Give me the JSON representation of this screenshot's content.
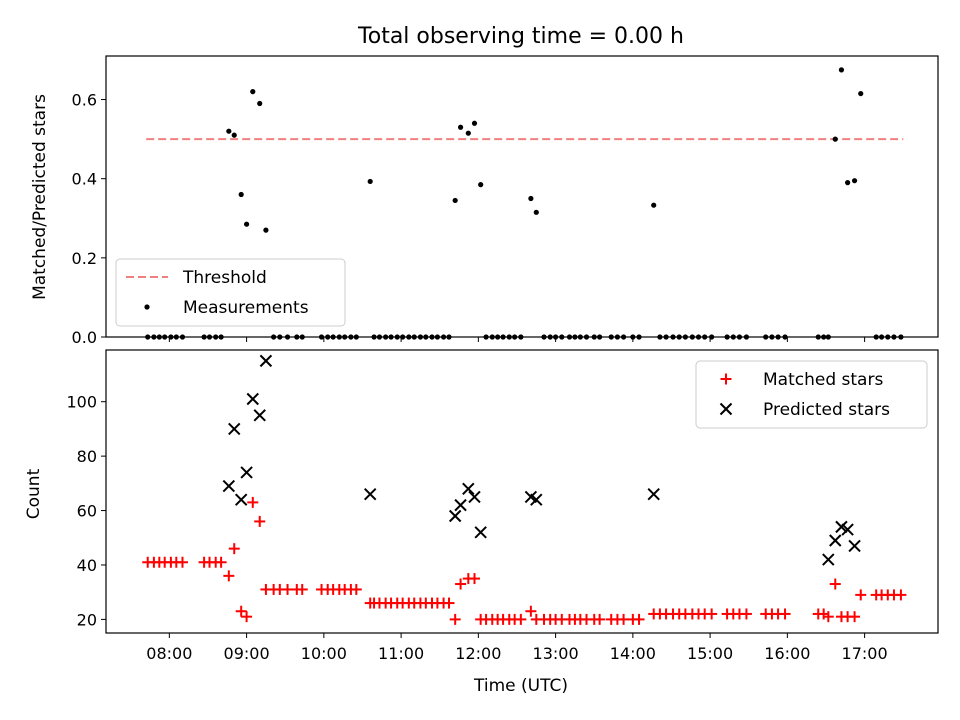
{
  "figure": {
    "title": "Total observing time = 0.00 h"
  },
  "chart_data": [
    {
      "type": "scatter",
      "panel": "top",
      "title": "Total observing time = 0.00 h",
      "ylabel": "Matched/Predicted stars",
      "xlabel": "",
      "xlim_hours": [
        7.18,
        17.95
      ],
      "ylim": [
        0,
        0.71
      ],
      "yticks": [
        0.0,
        0.2,
        0.4,
        0.6
      ],
      "ytick_labels": [
        "0.0",
        "0.2",
        "0.4",
        "0.6"
      ],
      "grid": false,
      "legend_position": "lower-left",
      "threshold": {
        "name": "Threshold",
        "value": 0.5,
        "x_range": [
          7.7,
          17.5
        ],
        "color": "#f08080",
        "style": "dashed"
      },
      "series": [
        {
          "name": "Measurements",
          "color": "#000000",
          "marker": "dot",
          "x": [
            7.72,
            7.8,
            7.87,
            7.94,
            8.02,
            8.09,
            8.17,
            8.45,
            8.52,
            8.6,
            8.67,
            8.77,
            8.84,
            8.93,
            9.0,
            9.08,
            9.17,
            9.25,
            9.35,
            9.43,
            9.53,
            9.65,
            9.72,
            9.97,
            10.05,
            10.12,
            10.2,
            10.27,
            10.35,
            10.42,
            10.6,
            10.65,
            10.72,
            10.8,
            10.87,
            10.95,
            11.02,
            11.1,
            11.17,
            11.25,
            11.32,
            11.4,
            11.47,
            11.55,
            11.62,
            11.7,
            11.77,
            11.87,
            11.95,
            12.03,
            12.1,
            12.18,
            12.25,
            12.32,
            12.4,
            12.47,
            12.55,
            12.68,
            12.75,
            12.85,
            12.93,
            13.0,
            13.08,
            13.18,
            13.25,
            13.32,
            13.4,
            13.5,
            13.57,
            13.72,
            13.8,
            13.88,
            14.0,
            14.08,
            14.27,
            14.35,
            14.43,
            14.52,
            14.6,
            14.68,
            14.77,
            14.85,
            14.93,
            15.02,
            15.22,
            15.3,
            15.38,
            15.47,
            15.72,
            15.8,
            15.88,
            15.97,
            16.4,
            16.47,
            16.53,
            16.62,
            16.7,
            16.78,
            16.87,
            16.95,
            17.15,
            17.22,
            17.3,
            17.38,
            17.47
          ],
          "y": [
            0,
            0,
            0,
            0,
            0,
            0,
            0,
            0,
            0,
            0,
            0,
            0.52,
            0.51,
            0.36,
            0.285,
            0.62,
            0.59,
            0.27,
            0,
            0,
            0,
            0,
            0,
            0,
            0,
            0,
            0,
            0,
            0,
            0,
            0.393,
            0,
            0,
            0,
            0,
            0,
            0,
            0,
            0,
            0,
            0,
            0,
            0,
            0,
            0,
            0.345,
            0.53,
            0.515,
            0.54,
            0.385,
            0,
            0,
            0,
            0,
            0,
            0,
            0,
            0.35,
            0.315,
            0,
            0,
            0,
            0,
            0,
            0,
            0,
            0,
            0,
            0,
            0,
            0,
            0,
            0,
            0,
            0.333,
            0,
            0,
            0,
            0,
            0,
            0,
            0,
            0,
            0,
            0,
            0,
            0,
            0,
            0,
            0,
            0,
            0,
            0,
            0,
            0,
            0.5,
            0.675,
            0.39,
            0.395,
            0.615,
            0,
            0,
            0,
            0,
            0
          ]
        }
      ]
    },
    {
      "type": "scatter",
      "panel": "bottom",
      "xlabel": "Time (UTC)",
      "ylabel": "Count",
      "xlim_hours": [
        7.18,
        17.95
      ],
      "ylim": [
        15,
        119
      ],
      "xticks_hours": [
        8,
        9,
        10,
        11,
        12,
        13,
        14,
        15,
        16,
        17
      ],
      "xtick_labels": [
        "08:00",
        "09:00",
        "10:00",
        "11:00",
        "12:00",
        "13:00",
        "14:00",
        "15:00",
        "16:00",
        "17:00"
      ],
      "yticks": [
        20,
        40,
        60,
        80,
        100
      ],
      "ytick_labels": [
        "20",
        "40",
        "60",
        "80",
        "100"
      ],
      "grid": false,
      "legend_position": "upper-right",
      "series": [
        {
          "name": "Matched stars",
          "color": "#ff0000",
          "marker": "plus",
          "x": [
            7.72,
            7.8,
            7.87,
            7.94,
            8.02,
            8.09,
            8.17,
            8.45,
            8.52,
            8.6,
            8.67,
            8.77,
            8.84,
            8.93,
            9.0,
            9.08,
            9.17,
            9.25,
            9.35,
            9.43,
            9.53,
            9.65,
            9.72,
            9.97,
            10.05,
            10.12,
            10.2,
            10.27,
            10.35,
            10.42,
            10.6,
            10.65,
            10.72,
            10.8,
            10.87,
            10.95,
            11.02,
            11.1,
            11.17,
            11.25,
            11.32,
            11.4,
            11.47,
            11.55,
            11.62,
            11.7,
            11.77,
            11.87,
            11.95,
            12.03,
            12.1,
            12.18,
            12.25,
            12.32,
            12.4,
            12.47,
            12.55,
            12.68,
            12.75,
            12.85,
            12.93,
            13.0,
            13.08,
            13.18,
            13.25,
            13.32,
            13.4,
            13.5,
            13.57,
            13.72,
            13.8,
            13.88,
            14.0,
            14.08,
            14.27,
            14.35,
            14.43,
            14.52,
            14.6,
            14.68,
            14.77,
            14.85,
            14.93,
            15.02,
            15.22,
            15.3,
            15.38,
            15.47,
            15.72,
            15.8,
            15.88,
            15.97,
            16.4,
            16.47,
            16.53,
            16.62,
            16.7,
            16.78,
            16.87,
            16.95,
            17.15,
            17.22,
            17.3,
            17.38,
            17.47
          ],
          "y": [
            41,
            41,
            41,
            41,
            41,
            41,
            41,
            41,
            41,
            41,
            41,
            36,
            46,
            23,
            21,
            63,
            56,
            31,
            31,
            31,
            31,
            31,
            31,
            31,
            31,
            31,
            31,
            31,
            31,
            31,
            26,
            26,
            26,
            26,
            26,
            26,
            26,
            26,
            26,
            26,
            26,
            26,
            26,
            26,
            26,
            20,
            33,
            35,
            35,
            20,
            20,
            20,
            20,
            20,
            20,
            20,
            20,
            23,
            20,
            20,
            20,
            20,
            20,
            20,
            20,
            20,
            20,
            20,
            20,
            20,
            20,
            20,
            20,
            20,
            22,
            22,
            22,
            22,
            22,
            22,
            22,
            22,
            22,
            22,
            22,
            22,
            22,
            22,
            22,
            22,
            22,
            22,
            22,
            22,
            21,
            33,
            21,
            21,
            21,
            29,
            29,
            29,
            29,
            29,
            29
          ]
        },
        {
          "name": "Predicted stars",
          "color": "#000000",
          "marker": "x",
          "x": [
            8.77,
            8.84,
            8.93,
            9.0,
            9.08,
            9.17,
            9.25,
            10.6,
            11.7,
            11.77,
            11.87,
            11.95,
            12.03,
            12.68,
            12.75,
            14.27,
            16.53,
            16.62,
            16.7,
            16.78,
            16.87
          ],
          "y": [
            69,
            90,
            64,
            74,
            101,
            95,
            115,
            66,
            58,
            62,
            68,
            65,
            52,
            65,
            64,
            66,
            42,
            49,
            54,
            53,
            47
          ]
        }
      ]
    }
  ]
}
